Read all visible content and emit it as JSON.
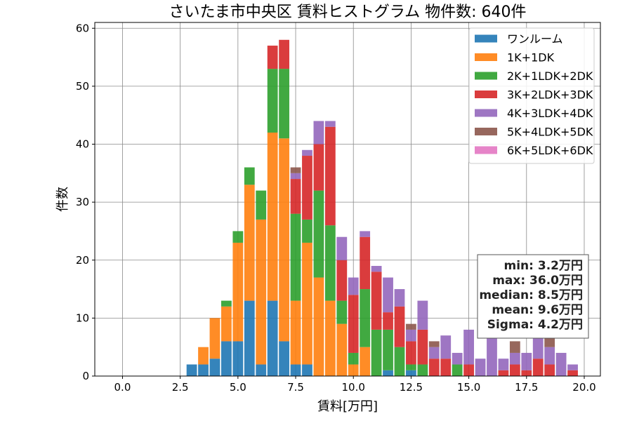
{
  "chart_data": {
    "type": "bar",
    "stacked": true,
    "title": "さいたま市中央区 賃料ヒストグラム 物件数: 640件",
    "xlabel": "賃料[万円]",
    "ylabel": "件数",
    "xlim": [
      -1.2,
      20.7
    ],
    "ylim": [
      0,
      61
    ],
    "bin_width": 0.5,
    "grid": true,
    "legend_position": "top-right",
    "x": [
      3.0,
      3.5,
      4.0,
      4.5,
      5.0,
      5.5,
      6.0,
      6.5,
      7.0,
      7.5,
      8.0,
      8.5,
      9.0,
      9.5,
      10.0,
      10.5,
      11.0,
      11.5,
      12.0,
      12.5,
      13.0,
      13.5,
      14.0,
      14.5,
      15.0,
      15.5,
      16.0,
      16.5,
      17.0,
      17.5,
      18.0,
      18.5,
      19.0,
      19.5
    ],
    "x_ticks": [
      0,
      2.5,
      5,
      7.5,
      10,
      12.5,
      15,
      17.5,
      20
    ],
    "x_tick_labels": [
      "0.0",
      "2.5",
      "5.0",
      "7.5",
      "10.0",
      "12.5",
      "15.0",
      "17.5",
      "20.0"
    ],
    "y_ticks": [
      0,
      10,
      20,
      30,
      40,
      50,
      60
    ],
    "y_tick_labels": [
      "0",
      "10",
      "20",
      "30",
      "40",
      "50",
      "60"
    ],
    "series": [
      {
        "name": "ワンルーム",
        "color": "#1f77b4",
        "values": [
          2,
          2,
          3,
          6,
          6,
          13,
          2,
          13,
          6,
          2,
          2,
          0,
          0,
          0,
          0,
          0,
          0,
          1,
          0,
          1,
          0,
          0,
          0,
          0,
          0,
          0,
          0,
          0,
          0,
          0,
          0,
          0,
          0,
          0
        ]
      },
      {
        "name": "1K+1DK",
        "color": "#ff7f0e",
        "values": [
          0,
          3,
          7,
          6,
          17,
          20,
          25,
          29,
          35,
          11,
          21,
          17,
          13,
          9,
          2,
          5,
          0,
          0,
          0,
          0,
          0,
          0,
          0,
          0,
          0,
          0,
          0,
          0,
          0,
          0,
          0,
          0,
          0,
          0
        ]
      },
      {
        "name": "2K+1LDK+2DK",
        "color": "#2ca02c",
        "values": [
          0,
          0,
          0,
          1,
          2,
          3,
          5,
          11,
          12,
          15,
          4,
          15,
          13,
          4,
          2,
          10,
          8,
          7,
          5,
          1,
          2,
          0,
          0,
          2,
          0,
          0,
          0,
          0,
          0,
          0,
          0,
          0,
          0,
          0
        ]
      },
      {
        "name": "3K+2LDK+3DK",
        "color": "#d62728",
        "values": [
          0,
          0,
          0,
          0,
          0,
          0,
          0,
          4,
          5,
          6,
          11,
          8,
          17,
          7,
          10,
          9,
          10,
          3,
          7,
          4,
          6,
          3,
          3,
          0,
          2,
          0,
          0,
          1,
          2,
          1,
          3,
          2,
          0,
          1
        ]
      },
      {
        "name": "4K+3LDK+4DK",
        "color": "#9467bd",
        "values": [
          0,
          0,
          0,
          0,
          0,
          0,
          0,
          0,
          0,
          1,
          1,
          4,
          1,
          4,
          3,
          1,
          1,
          6,
          3,
          2,
          5,
          2,
          4,
          2,
          6,
          3,
          7,
          2,
          2,
          3,
          4,
          3,
          4,
          1
        ]
      },
      {
        "name": "5K+4LDK+5DK",
        "color": "#8c564b",
        "values": [
          0,
          0,
          0,
          0,
          0,
          0,
          0,
          0,
          0,
          1,
          0,
          0,
          0,
          0,
          0,
          0,
          0,
          0,
          0,
          1,
          0,
          1,
          0,
          0,
          0,
          0,
          0,
          0,
          2,
          0,
          0,
          2,
          0,
          0
        ]
      },
      {
        "name": "6K+5LDK+6DK",
        "color": "#e377c2",
        "values": [
          0,
          0,
          0,
          0,
          0,
          0,
          0,
          0,
          0,
          0,
          0,
          0,
          0,
          0,
          0,
          0,
          0,
          0,
          0,
          0,
          0,
          0,
          0,
          0,
          0,
          0,
          0,
          0,
          0,
          0,
          0,
          0,
          0,
          0
        ]
      }
    ],
    "stats": [
      "min: 3.2万円",
      "max: 36.0万円",
      "median: 8.5万円",
      "mean: 9.6万円",
      "Sigma: 4.2万円"
    ]
  }
}
